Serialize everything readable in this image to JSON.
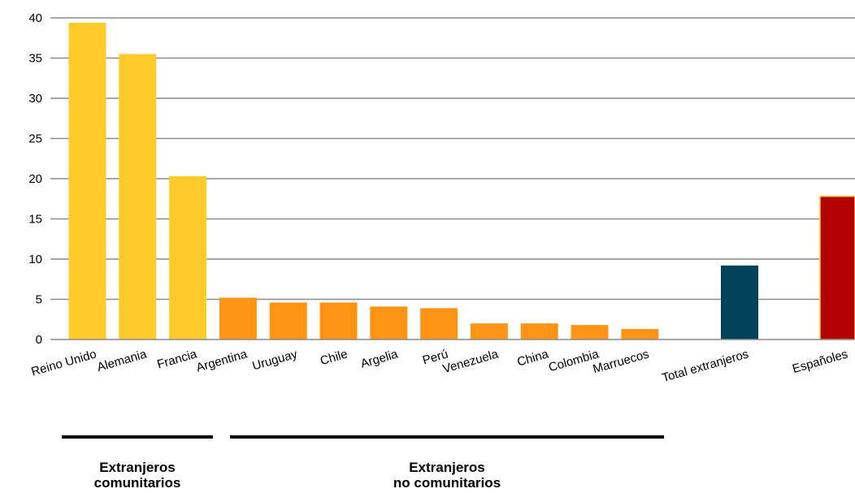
{
  "chart_data": {
    "type": "bar",
    "title": "",
    "xlabel": "",
    "ylabel": "",
    "ylim": [
      0,
      40
    ],
    "yticks": [
      0,
      5,
      10,
      15,
      20,
      25,
      30,
      35,
      40
    ],
    "grid": true,
    "categories": [
      "Reino Unido",
      "Alemania",
      "Francia",
      "Argentina",
      "Uruguay",
      "Chile",
      "Argelia",
      "Perú",
      "Venezuela",
      "China",
      "Colombia",
      "Marruecos",
      "Total extranjeros",
      "Españoles"
    ],
    "values": [
      39.4,
      35.5,
      20.3,
      5.2,
      4.6,
      4.6,
      4.1,
      3.9,
      2.0,
      2.0,
      1.8,
      1.3,
      9.2,
      17.8
    ],
    "colors": [
      "#FFCB2B",
      "#FFCB2B",
      "#FFCB2B",
      "#FF9414",
      "#FF9414",
      "#FF9414",
      "#FF9414",
      "#FF9414",
      "#FF9414",
      "#FF9414",
      "#FF9414",
      "#FF9414",
      "#004359",
      "#B30000"
    ],
    "groups": [
      {
        "line1": "Extranjeros",
        "line2": "comunitarios"
      },
      {
        "line1": "Extranjeros",
        "line2": "no comunitarios"
      }
    ]
  }
}
